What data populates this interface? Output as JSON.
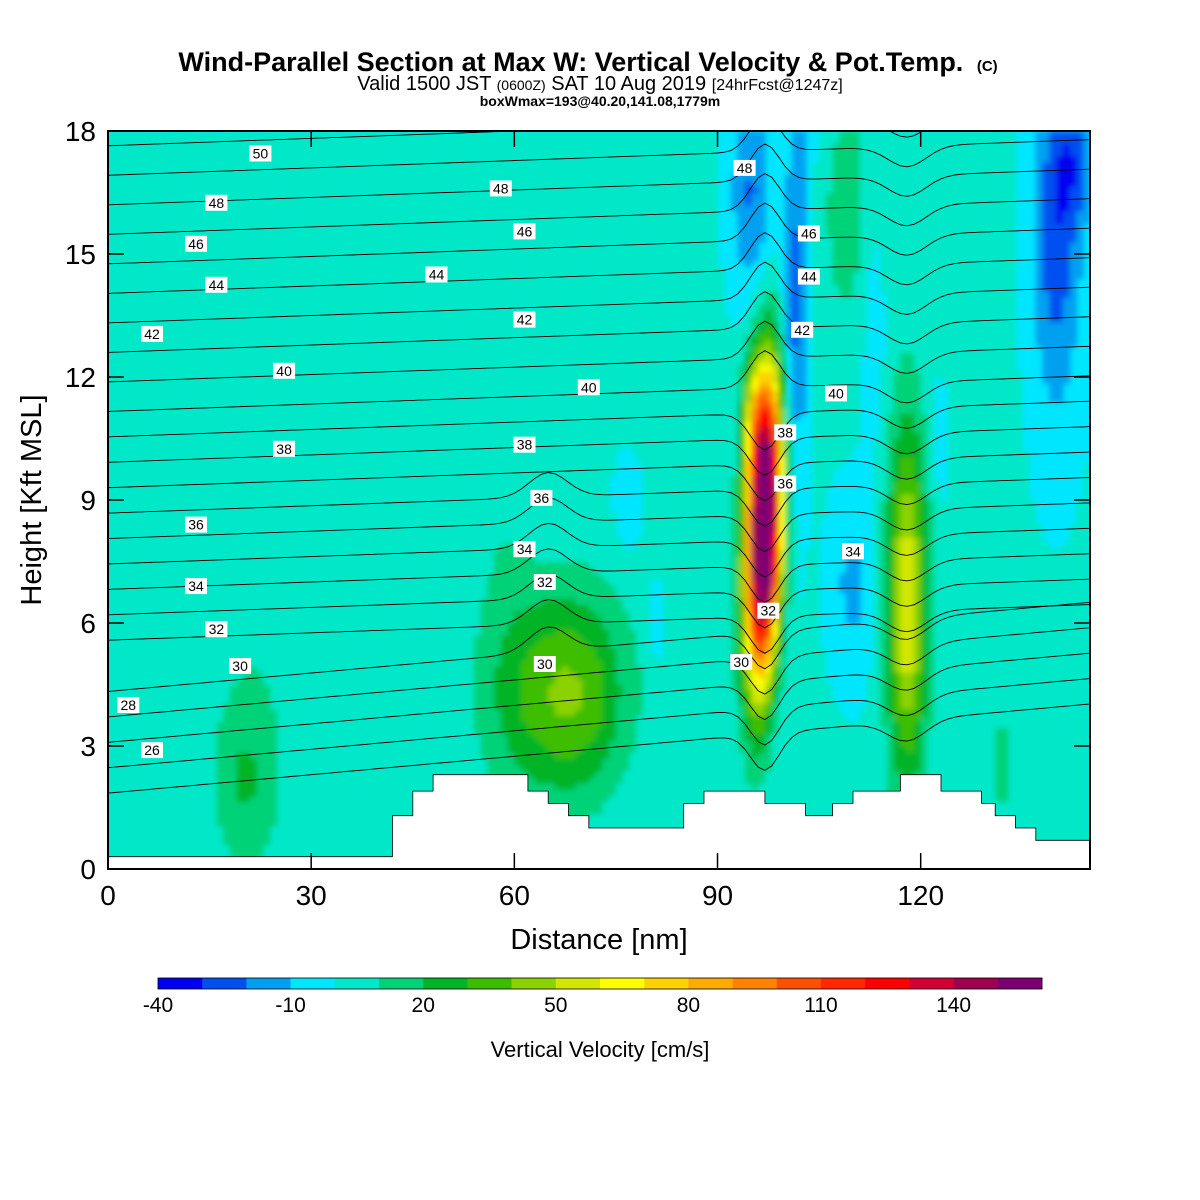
{
  "title_main": "Wind-Parallel Section at Max W: Vertical Velocity & Pot.Temp.",
  "title_copyright": "(C)",
  "subtitle_valid": "Valid 1500 JST",
  "subtitle_utc": "(0600Z)",
  "subtitle_date": "SAT 10 Aug 2019",
  "subtitle_forecast": "[24hrFcst@1247z]",
  "subtitle_box": "boxWmax=193@40.20,141.08,1779m",
  "colorbar_label": "Vertical Velocity [cm/s]",
  "chart_data": {
    "type": "heatmap",
    "xlabel": "Distance [nm]",
    "ylabel": "Height [Kft MSL]",
    "xlim": [
      0,
      145
    ],
    "ylim": [
      0,
      18
    ],
    "x_ticks": [
      0,
      30,
      60,
      90,
      120
    ],
    "y_ticks": [
      0,
      3,
      6,
      9,
      12,
      15,
      18
    ],
    "colorbar": {
      "levels": [
        -40,
        -30,
        -20,
        -10,
        0,
        10,
        20,
        30,
        40,
        50,
        60,
        70,
        80,
        90,
        100,
        110,
        120,
        130,
        140,
        150,
        160
      ],
      "tick_labels": [
        "-40",
        "-10",
        "20",
        "50",
        "80",
        "110",
        "140"
      ],
      "tick_values": [
        -40,
        -10,
        20,
        50,
        80,
        110,
        140
      ],
      "colors": [
        "#0000f0",
        "#0050f0",
        "#00a0f0",
        "#00e6ff",
        "#00e8c8",
        "#00d278",
        "#00b428",
        "#3cbe00",
        "#8cd200",
        "#d2e600",
        "#ffff00",
        "#ffd200",
        "#ffaa00",
        "#ff8200",
        "#ff5000",
        "#ff2800",
        "#ff0000",
        "#d20032",
        "#a00050",
        "#7d0073"
      ]
    },
    "theta_contours": {
      "name": "Potential temperature",
      "labels": [
        {
          "value": 50,
          "x": 22.5,
          "y": 17.45
        },
        {
          "value": 48,
          "x": 16,
          "y": 16.25
        },
        {
          "value": 48,
          "x": 58,
          "y": 16.6
        },
        {
          "value": 48,
          "x": 94,
          "y": 17.1
        },
        {
          "value": 46,
          "x": 13,
          "y": 15.25
        },
        {
          "value": 46,
          "x": 61.5,
          "y": 15.55
        },
        {
          "value": 46,
          "x": 103.5,
          "y": 15.5
        },
        {
          "value": 44,
          "x": 16,
          "y": 14.25
        },
        {
          "value": 44,
          "x": 48.5,
          "y": 14.5
        },
        {
          "value": 44,
          "x": 103.5,
          "y": 14.45
        },
        {
          "value": 42,
          "x": 6.5,
          "y": 13.05
        },
        {
          "value": 42,
          "x": 61.5,
          "y": 13.4
        },
        {
          "value": 42,
          "x": 102.5,
          "y": 13.15
        },
        {
          "value": 40,
          "x": 26,
          "y": 12.15
        },
        {
          "value": 40,
          "x": 71,
          "y": 11.75
        },
        {
          "value": 40,
          "x": 107.5,
          "y": 11.6
        },
        {
          "value": 38,
          "x": 26,
          "y": 10.25
        },
        {
          "value": 38,
          "x": 61.5,
          "y": 10.35
        },
        {
          "value": 38,
          "x": 100,
          "y": 10.65
        },
        {
          "value": 36,
          "x": 13,
          "y": 8.4
        },
        {
          "value": 36,
          "x": 64,
          "y": 9.05
        },
        {
          "value": 36,
          "x": 100,
          "y": 9.4
        },
        {
          "value": 34,
          "x": 13,
          "y": 6.9
        },
        {
          "value": 34,
          "x": 61.5,
          "y": 7.8
        },
        {
          "value": 34,
          "x": 110,
          "y": 7.75
        },
        {
          "value": 32,
          "x": 16,
          "y": 5.85
        },
        {
          "value": 32,
          "x": 64.5,
          "y": 7.0
        },
        {
          "value": 32,
          "x": 97.5,
          "y": 6.3
        },
        {
          "value": 30,
          "x": 19.5,
          "y": 4.95
        },
        {
          "value": 30,
          "x": 64.5,
          "y": 5.0
        },
        {
          "value": 30,
          "x": 93.5,
          "y": 5.05
        },
        {
          "value": 28,
          "x": 3,
          "y": 4.0
        },
        {
          "value": 26,
          "x": 6.5,
          "y": 2.9
        }
      ]
    },
    "terrain_kft": {
      "x": [
        0,
        40,
        42,
        42,
        45,
        45,
        48,
        48,
        55,
        55,
        62,
        62,
        65,
        65,
        68,
        68,
        71,
        71,
        85,
        85,
        88,
        88,
        92,
        92,
        97,
        97,
        103,
        103,
        107,
        107,
        110,
        110,
        117,
        117,
        123,
        123,
        126,
        126,
        129,
        129,
        131,
        131,
        134,
        134,
        137,
        137,
        140,
        140,
        145
      ],
      "y": [
        0.3,
        0.3,
        0.3,
        1.3,
        1.3,
        1.9,
        1.9,
        2.3,
        2.3,
        2.3,
        2.3,
        1.9,
        1.9,
        1.6,
        1.6,
        1.3,
        1.3,
        1.0,
        1.0,
        1.6,
        1.6,
        1.9,
        1.9,
        1.9,
        1.9,
        1.6,
        1.6,
        1.3,
        1.3,
        1.6,
        1.6,
        1.9,
        1.9,
        2.3,
        2.3,
        1.9,
        1.9,
        1.9,
        1.9,
        1.6,
        1.6,
        1.3,
        1.3,
        1.0,
        1.0,
        0.7,
        0.7,
        0.7,
        0.7
      ]
    },
    "updraft_core": {
      "x": 97,
      "y": 8,
      "max_cm_s": 193
    }
  }
}
